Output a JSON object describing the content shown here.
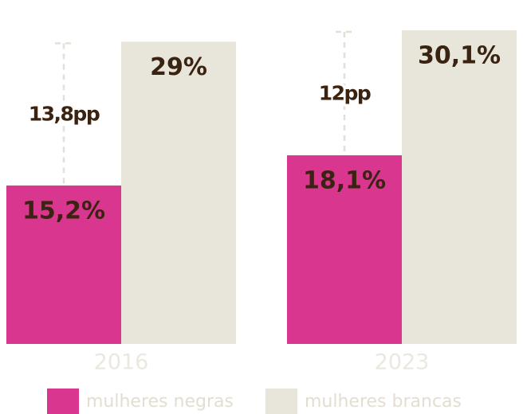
{
  "chart_data": {
    "type": "bar",
    "categories": [
      "2016",
      "2023"
    ],
    "series": [
      {
        "name": "mulheres negras",
        "color": "#d9368f",
        "values": [
          15.2,
          18.1
        ],
        "value_labels": [
          "15,2%",
          "18,1%"
        ]
      },
      {
        "name": "mulheres brancas",
        "color": "#e8e5da",
        "values": [
          29,
          30.1
        ],
        "value_labels": [
          "29%",
          "30,1%"
        ]
      }
    ],
    "differences": {
      "values": [
        13.8,
        12
      ],
      "value_labels": [
        "13,8pp",
        "12pp"
      ]
    }
  }
}
